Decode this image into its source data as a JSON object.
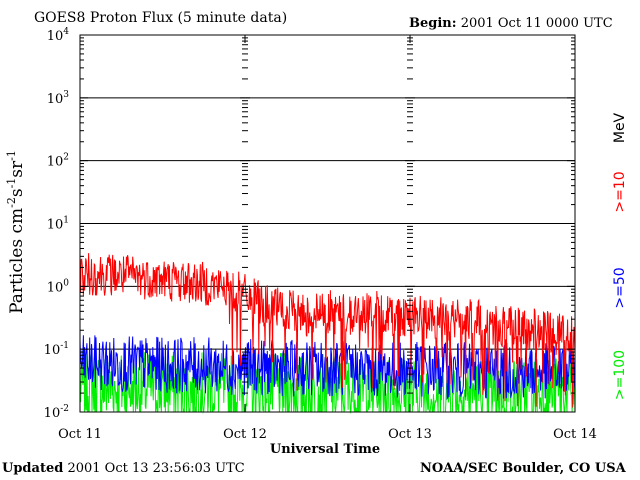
{
  "header": {
    "title": "GOES8 Proton Flux (5 minute data)",
    "begin_label": "Begin:",
    "begin_value": "2001 Oct 11 0000 UTC"
  },
  "footer": {
    "updated_label": "Updated",
    "updated_value": "2001 Oct 13 23:56:03 UTC",
    "credit": "NOAA/SEC Boulder, CO USA"
  },
  "chart_data": {
    "type": "line",
    "title": "GOES8 Proton Flux (5 minute data)",
    "xlabel": "Universal Time",
    "ylabel": "Particles cm-2s-1sr-1",
    "y_scale": "log",
    "ylim": [
      0.01,
      10000
    ],
    "y_ticks": [
      {
        "value": 0.01,
        "base": "10",
        "exp": "-2"
      },
      {
        "value": 0.1,
        "base": "10",
        "exp": "-1"
      },
      {
        "value": 1,
        "base": "10",
        "exp": "0"
      },
      {
        "value": 10,
        "base": "10",
        "exp": "1"
      },
      {
        "value": 100,
        "base": "10",
        "exp": "2"
      },
      {
        "value": 1000,
        "base": "10",
        "exp": "3"
      },
      {
        "value": 10000,
        "base": "10",
        "exp": "4"
      }
    ],
    "x_unit": "day",
    "xlim": [
      "2001-10-11",
      "2001-10-14"
    ],
    "x_ticks": [
      {
        "value": "2001-10-11",
        "label": "Oct 11"
      },
      {
        "value": "2001-10-12",
        "label": "Oct 12"
      },
      {
        "value": "2001-10-13",
        "label": "Oct 13"
      },
      {
        "value": "2001-10-14",
        "label": "Oct 14"
      }
    ],
    "grid": "horizontal at decades",
    "legend_position": "right",
    "series": [
      {
        "name": ">=10",
        "color": "#ff0000",
        "x": [
          "2001-10-11T00:00",
          "2001-10-11T03:00",
          "2001-10-11T06:00",
          "2001-10-11T09:00",
          "2001-10-11T12:00",
          "2001-10-11T15:00",
          "2001-10-11T18:00",
          "2001-10-11T21:00",
          "2001-10-12T00:00",
          "2001-10-12T03:00",
          "2001-10-12T06:00",
          "2001-10-12T09:00",
          "2001-10-12T12:00",
          "2001-10-12T15:00",
          "2001-10-12T18:00",
          "2001-10-12T21:00",
          "2001-10-13T00:00",
          "2001-10-13T03:00",
          "2001-10-13T06:00",
          "2001-10-13T09:00",
          "2001-10-13T12:00",
          "2001-10-13T15:00",
          "2001-10-13T18:00",
          "2001-10-13T21:00",
          "2001-10-14T00:00"
        ],
        "y": [
          1.5,
          1.6,
          1.5,
          1.4,
          1.3,
          1.2,
          1.1,
          1.0,
          0.7,
          0.5,
          0.4,
          0.35,
          0.4,
          0.35,
          0.4,
          0.35,
          0.35,
          0.3,
          0.3,
          0.28,
          0.25,
          0.22,
          0.2,
          0.18,
          0.17
        ]
      },
      {
        "name": ">=50",
        "color": "#0000ff",
        "x": [
          "2001-10-11T00:00",
          "2001-10-11T06:00",
          "2001-10-11T12:00",
          "2001-10-11T18:00",
          "2001-10-12T00:00",
          "2001-10-12T06:00",
          "2001-10-12T12:00",
          "2001-10-12T18:00",
          "2001-10-13T00:00",
          "2001-10-13T06:00",
          "2001-10-13T12:00",
          "2001-10-13T18:00",
          "2001-10-14T00:00"
        ],
        "y": [
          0.06,
          0.058,
          0.056,
          0.055,
          0.052,
          0.05,
          0.05,
          0.048,
          0.047,
          0.046,
          0.045,
          0.045,
          0.044
        ]
      },
      {
        "name": ">=100",
        "color": "#00ee00",
        "x": [
          "2001-10-11T00:00",
          "2001-10-11T06:00",
          "2001-10-11T12:00",
          "2001-10-11T18:00",
          "2001-10-12T00:00",
          "2001-10-12T06:00",
          "2001-10-12T12:00",
          "2001-10-12T18:00",
          "2001-10-13T00:00",
          "2001-10-13T06:00",
          "2001-10-13T12:00",
          "2001-10-13T18:00",
          "2001-10-14T00:00"
        ],
        "y": [
          0.025,
          0.024,
          0.024,
          0.023,
          0.022,
          0.022,
          0.021,
          0.021,
          0.02,
          0.02,
          0.02,
          0.02,
          0.02
        ]
      }
    ],
    "legend_unit": "MeV"
  }
}
